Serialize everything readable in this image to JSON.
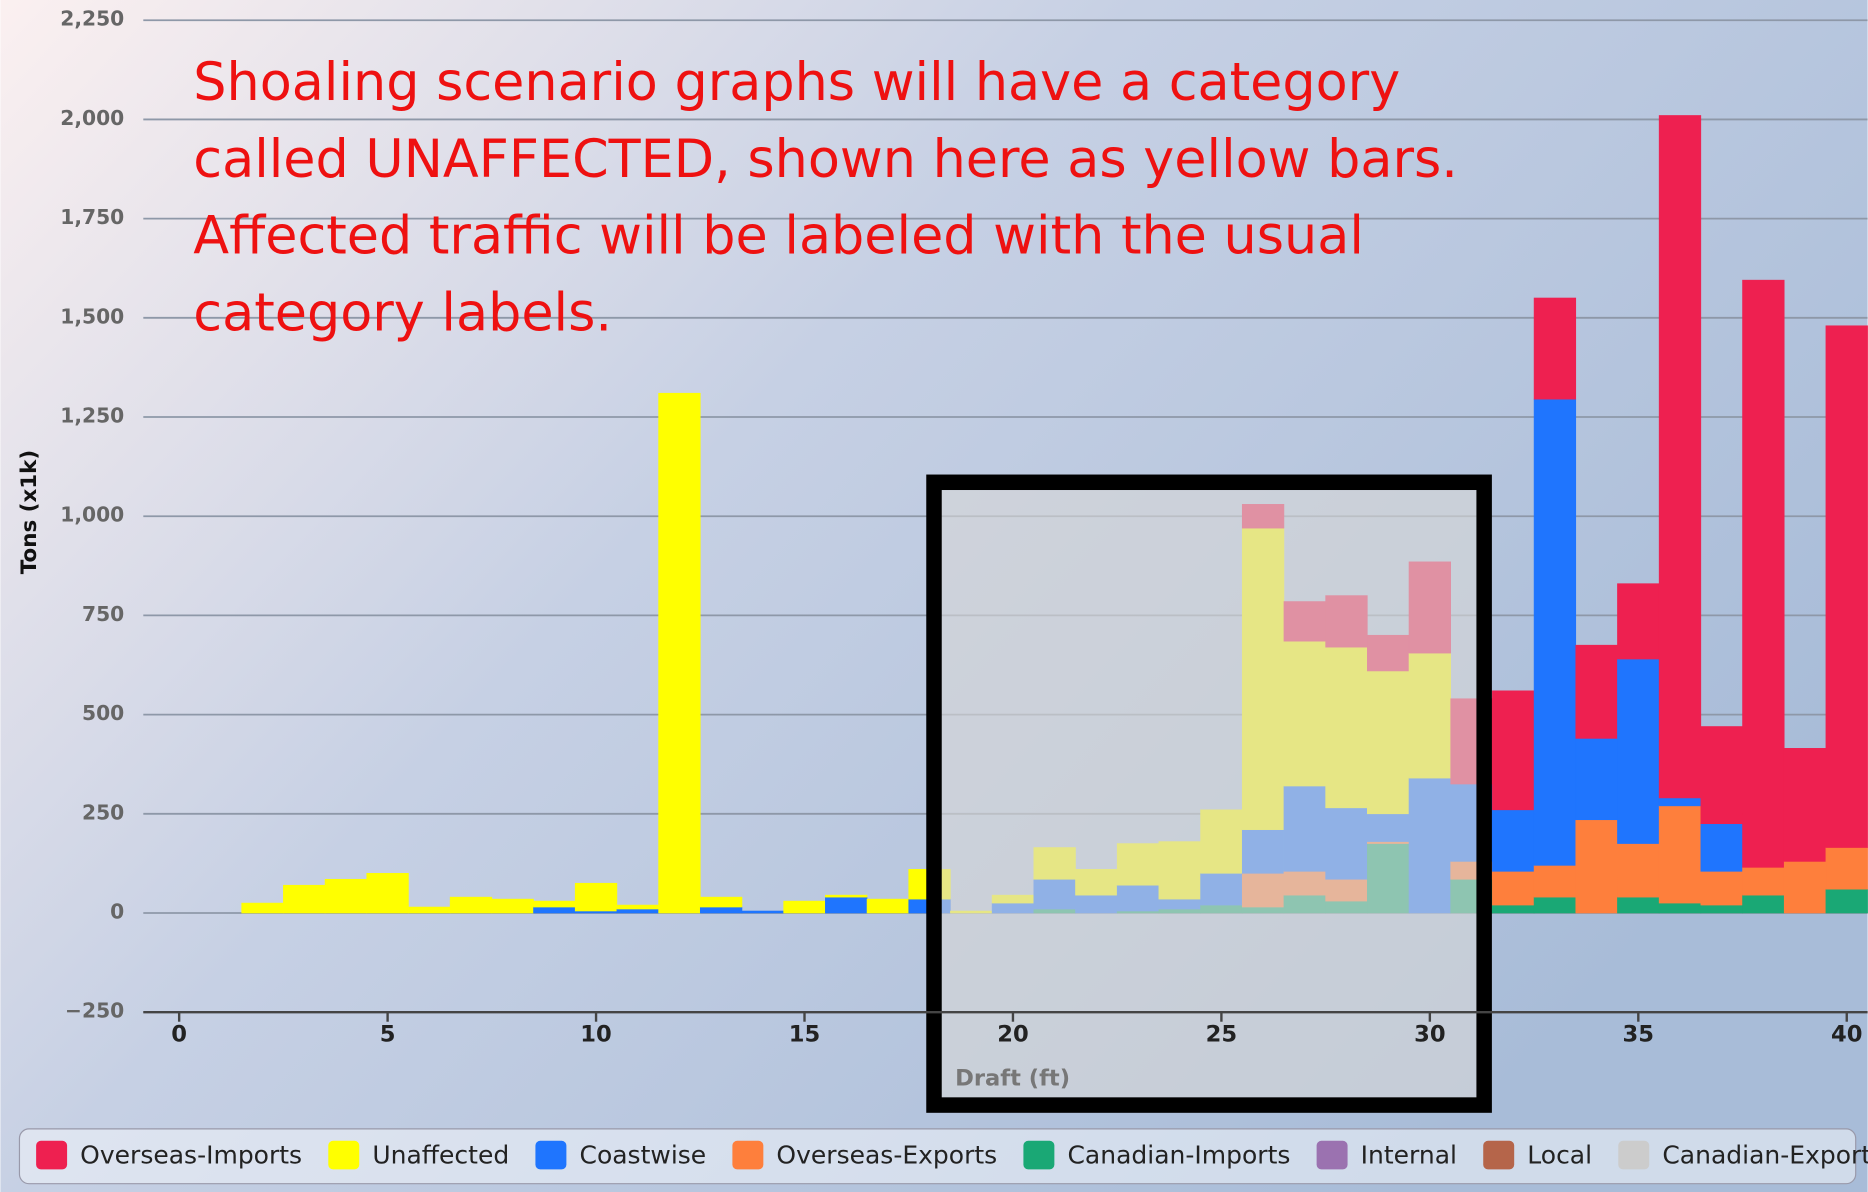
{
  "chart_data": {
    "type": "bar",
    "stacked": true,
    "annotation": [
      "Shoaling scenario graphs will have a category",
      "called UNAFFECTED, shown here as yellow bars.",
      "Affected traffic will be labeled with the usual",
      "category labels."
    ],
    "x_label": "Draft (ft)",
    "y_label": "Tons (x1k)",
    "x": [
      2,
      3,
      4,
      5,
      6,
      7,
      8,
      9,
      10,
      11,
      12,
      13,
      14,
      15,
      16,
      17,
      18,
      19,
      20,
      21,
      22,
      23,
      24,
      25,
      26,
      27,
      28,
      29,
      30,
      31,
      32,
      33,
      34,
      35,
      36,
      37,
      38,
      39,
      40
    ],
    "series": [
      {
        "name": "Overseas-Imports",
        "color": "#ee2050",
        "values": [
          0,
          0,
          0,
          0,
          0,
          0,
          0,
          0,
          0,
          0,
          0,
          0,
          0,
          0,
          0,
          0,
          0,
          0,
          0,
          0,
          0,
          0,
          0,
          0,
          60,
          100,
          130,
          90,
          230,
          215,
          300,
          255,
          235,
          190,
          1720,
          245,
          1480,
          285,
          1315
        ]
      },
      {
        "name": "Unaffected",
        "color": "#ffff00",
        "values": [
          25,
          70,
          85,
          100,
          15,
          40,
          35,
          15,
          70,
          10,
          1310,
          25,
          0,
          30,
          5,
          35,
          75,
          5,
          20,
          80,
          65,
          105,
          145,
          160,
          760,
          365,
          405,
          360,
          315,
          0,
          0,
          0,
          0,
          0,
          0,
          0,
          0,
          0,
          0
        ]
      },
      {
        "name": "Coastwise",
        "color": "#1f75fe",
        "values": [
          0,
          0,
          0,
          0,
          0,
          0,
          0,
          15,
          5,
          10,
          0,
          15,
          5,
          0,
          40,
          0,
          35,
          0,
          25,
          75,
          45,
          65,
          25,
          80,
          110,
          215,
          180,
          70,
          340,
          195,
          155,
          1175,
          205,
          465,
          20,
          120,
          0,
          0,
          0
        ]
      },
      {
        "name": "Overseas-Exports",
        "color": "#fe7f3c",
        "values": [
          0,
          0,
          0,
          0,
          0,
          0,
          0,
          0,
          0,
          0,
          0,
          0,
          0,
          0,
          0,
          0,
          0,
          0,
          0,
          0,
          0,
          0,
          0,
          0,
          85,
          60,
          55,
          5,
          0,
          45,
          85,
          80,
          235,
          135,
          245,
          85,
          70,
          130,
          105
        ]
      },
      {
        "name": "Canadian-Imports",
        "color": "#1aa875",
        "values": [
          0,
          0,
          0,
          0,
          0,
          0,
          0,
          0,
          0,
          0,
          0,
          0,
          0,
          0,
          0,
          0,
          0,
          0,
          0,
          10,
          0,
          5,
          10,
          20,
          15,
          45,
          30,
          175,
          0,
          85,
          20,
          40,
          0,
          40,
          25,
          20,
          45,
          0,
          60
        ]
      },
      {
        "name": "Internal",
        "color": "#9b72b0",
        "values": [
          0,
          0,
          0,
          0,
          0,
          0,
          0,
          0,
          0,
          0,
          0,
          0,
          0,
          0,
          0,
          0,
          0,
          0,
          0,
          0,
          0,
          0,
          0,
          0,
          0,
          0,
          0,
          0,
          0,
          0,
          0,
          0,
          0,
          0,
          0,
          0,
          0,
          0,
          0
        ]
      },
      {
        "name": "Local",
        "color": "#b5654a",
        "values": [
          0,
          0,
          0,
          0,
          0,
          0,
          0,
          0,
          0,
          0,
          0,
          0,
          0,
          0,
          0,
          0,
          0,
          0,
          0,
          0,
          0,
          0,
          0,
          0,
          0,
          0,
          0,
          0,
          0,
          0,
          0,
          0,
          0,
          0,
          0,
          0,
          0,
          0,
          0
        ]
      },
      {
        "name": "Canadian-Exports",
        "color": "#cccccc",
        "values": [
          0,
          0,
          0,
          0,
          0,
          0,
          0,
          0,
          0,
          0,
          0,
          0,
          0,
          0,
          0,
          0,
          0,
          0,
          0,
          0,
          0,
          0,
          0,
          0,
          0,
          0,
          0,
          0,
          0,
          0,
          0,
          0,
          0,
          0,
          0,
          0,
          0,
          0,
          0
        ]
      }
    ],
    "xlim": [
      -0.86,
      40.5
    ],
    "xticks": [
      0,
      5,
      10,
      15,
      20,
      25,
      30,
      35,
      40
    ],
    "ylim": [
      -250,
      2250
    ],
    "yticks": [
      {
        "value": -250,
        "label": "−250"
      },
      0,
      250,
      500,
      750,
      {
        "value": 1000,
        "label": "1,000"
      },
      {
        "value": 1250,
        "label": "1,250"
      },
      {
        "value": 1500,
        "label": "1,500"
      },
      {
        "value": 1750,
        "label": "1,750"
      },
      {
        "value": 2000,
        "label": "2,000"
      },
      {
        "value": 2250,
        "label": "2,250"
      }
    ],
    "grid": true
  }
}
